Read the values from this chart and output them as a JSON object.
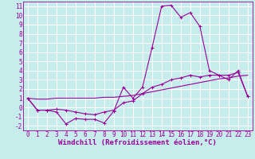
{
  "xlabel": "Windchill (Refroidissement éolien,°C)",
  "xlim": [
    -0.5,
    23.5
  ],
  "ylim": [
    -2.5,
    11.5
  ],
  "yticks": [
    -2,
    -1,
    0,
    1,
    2,
    3,
    4,
    5,
    6,
    7,
    8,
    9,
    10,
    11
  ],
  "xticks": [
    0,
    1,
    2,
    3,
    4,
    5,
    6,
    7,
    8,
    9,
    10,
    11,
    12,
    13,
    14,
    15,
    16,
    17,
    18,
    19,
    20,
    21,
    22,
    23
  ],
  "background_color": "#c6ecec",
  "grid_color": "#ffffff",
  "line_color": "#990099",
  "line1_x": [
    0,
    1,
    2,
    3,
    4,
    5,
    6,
    7,
    8,
    9,
    10,
    11,
    12,
    13,
    14,
    15,
    16,
    17,
    18,
    19,
    20,
    21,
    22,
    23
  ],
  "line1_y": [
    1.0,
    -0.3,
    -0.3,
    -0.5,
    -1.8,
    -1.2,
    -1.3,
    -1.3,
    -1.7,
    -0.4,
    2.2,
    1.0,
    2.2,
    6.5,
    11.0,
    11.1,
    9.8,
    10.3,
    8.8,
    4.0,
    3.5,
    3.0,
    4.0,
    1.2
  ],
  "line2_x": [
    0,
    1,
    2,
    3,
    4,
    5,
    6,
    7,
    8,
    9,
    10,
    11,
    12,
    13,
    14,
    15,
    16,
    17,
    18,
    19,
    20,
    21,
    22,
    23
  ],
  "line2_y": [
    1.0,
    -0.3,
    -0.3,
    -0.2,
    -0.3,
    -0.5,
    -0.7,
    -0.8,
    -0.5,
    -0.3,
    0.5,
    0.7,
    1.5,
    2.2,
    2.5,
    3.0,
    3.2,
    3.5,
    3.3,
    3.5,
    3.5,
    3.5,
    3.8,
    1.2
  ],
  "line3_x": [
    0,
    1,
    2,
    3,
    4,
    5,
    6,
    7,
    8,
    9,
    10,
    11,
    12,
    13,
    14,
    15,
    16,
    17,
    18,
    19,
    20,
    21,
    22,
    23
  ],
  "line3_y": [
    1.0,
    0.9,
    0.9,
    1.0,
    1.0,
    1.0,
    1.0,
    1.0,
    1.1,
    1.1,
    1.2,
    1.3,
    1.5,
    1.7,
    1.9,
    2.1,
    2.3,
    2.5,
    2.7,
    2.9,
    3.1,
    3.2,
    3.4,
    3.5
  ],
  "font_family": "monospace",
  "tick_fontsize": 5.5,
  "xlabel_fontsize": 6.5
}
